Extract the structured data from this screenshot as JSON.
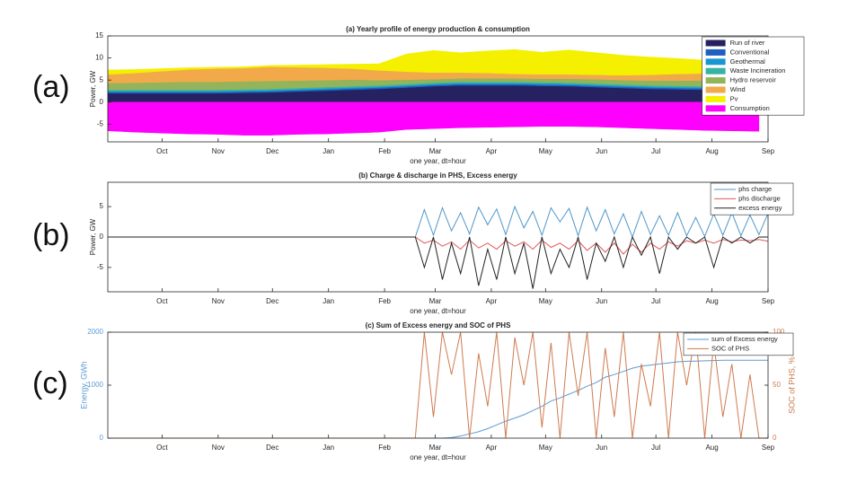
{
  "chart_data": [
    {
      "type": "area",
      "stacked": true,
      "panel_label": "(a)",
      "title": "(a) Yearly profile of energy production & consumption",
      "xlabel": "one year, dt=hour",
      "ylabel": "Power, GW",
      "xlim": [
        0,
        365
      ],
      "ylim": [
        -9,
        15
      ],
      "yticks": [
        -5,
        0,
        5,
        10,
        15
      ],
      "xticks": [
        {
          "value": 30,
          "label": "Oct"
        },
        {
          "value": 61,
          "label": "Nov"
        },
        {
          "value": 91,
          "label": "Dec"
        },
        {
          "value": 122,
          "label": "Jan"
        },
        {
          "value": 153,
          "label": "Feb"
        },
        {
          "value": 181,
          "label": "Mar"
        },
        {
          "value": 212,
          "label": "Apr"
        },
        {
          "value": 242,
          "label": "May"
        },
        {
          "value": 273,
          "label": "Jun"
        },
        {
          "value": 303,
          "label": "Jul"
        },
        {
          "value": 334,
          "label": "Aug"
        },
        {
          "value": 365,
          "label": "Sep"
        }
      ],
      "legend": "upper right",
      "grid": false,
      "x": [
        0,
        15,
        30,
        45,
        60,
        75,
        90,
        105,
        120,
        135,
        150,
        165,
        180,
        195,
        210,
        225,
        240,
        255,
        270,
        285,
        300,
        315,
        330,
        345,
        360
      ],
      "series": [
        {
          "name": "Run of river",
          "color": "#262262",
          "values": [
            2,
            2,
            2,
            2,
            2,
            2.1,
            2.2,
            2.4,
            2.6,
            2.8,
            3,
            3.3,
            3.6,
            3.8,
            3.8,
            3.8,
            3.7,
            3.6,
            3.4,
            3.2,
            3,
            2.9,
            2.8,
            2.7,
            2.6
          ]
        },
        {
          "name": "Conventional",
          "color": "#1f5fbf",
          "values": [
            0.3,
            0.3,
            0.3,
            0.3,
            0.3,
            0.3,
            0.3,
            0.3,
            0.3,
            0.3,
            0.3,
            0.3,
            0.3,
            0.3,
            0.3,
            0.3,
            0.3,
            0.3,
            0.3,
            0.3,
            0.3,
            0.3,
            0.3,
            0.3,
            0.3
          ]
        },
        {
          "name": "Geothermal",
          "color": "#1896d2",
          "values": [
            0.2,
            0.2,
            0.2,
            0.2,
            0.2,
            0.2,
            0.2,
            0.2,
            0.2,
            0.2,
            0.2,
            0.2,
            0.2,
            0.2,
            0.2,
            0.2,
            0.2,
            0.2,
            0.2,
            0.2,
            0.2,
            0.2,
            0.2,
            0.2,
            0.2
          ]
        },
        {
          "name": "Waste Incineration",
          "color": "#35b3a5",
          "values": [
            0.3,
            0.3,
            0.3,
            0.3,
            0.3,
            0.3,
            0.3,
            0.3,
            0.3,
            0.3,
            0.3,
            0.3,
            0.3,
            0.3,
            0.3,
            0.3,
            0.3,
            0.3,
            0.3,
            0.3,
            0.3,
            0.3,
            0.3,
            0.3,
            0.3
          ]
        },
        {
          "name": "Hydro reservoir",
          "color": "#93b45a",
          "values": [
            1.5,
            1.6,
            1.7,
            1.8,
            1.8,
            1.8,
            1.8,
            1.7,
            1.6,
            1.5,
            1.2,
            1,
            0.8,
            0.8,
            0.8,
            0.8,
            0.8,
            0.9,
            1,
            1,
            1.1,
            1.2,
            1.3,
            1.4,
            1.5
          ]
        },
        {
          "name": "Wind",
          "color": "#f2a94a",
          "values": [
            2,
            2.2,
            2.5,
            2.8,
            3,
            3,
            3.2,
            3,
            2.8,
            2.5,
            2.2,
            1.8,
            1.5,
            1.3,
            1.2,
            1,
            1,
            1,
            1,
            1.1,
            1.3,
            1.5,
            1.6,
            1.8,
            2
          ]
        },
        {
          "name": "Pv",
          "color": "#f4f000",
          "values": [
            1,
            0.8,
            0.6,
            0.4,
            0.3,
            0.3,
            0.3,
            0.5,
            0.7,
            1,
            1.5,
            4,
            5,
            4.5,
            5,
            5.5,
            5,
            5.5,
            5,
            4.5,
            4,
            3.5,
            3,
            2.5,
            2
          ]
        },
        {
          "name": "Consumption",
          "color": "#ff00ff",
          "values": [
            -6.5,
            -6.8,
            -7,
            -7.2,
            -7.3,
            -7.5,
            -7.5,
            -7.3,
            -7.2,
            -7,
            -6.8,
            -6.2,
            -6,
            -5.8,
            -5.7,
            -5.6,
            -5.5,
            -5.5,
            -5.6,
            -5.8,
            -6,
            -6.2,
            -6.4,
            -6.5,
            -6.6
          ]
        }
      ]
    },
    {
      "type": "line",
      "panel_label": "(b)",
      "title": "(b) Charge & discharge in PHS, Excess energy",
      "xlabel": "one year, dt=hour",
      "ylabel": "Power, GW",
      "xlim": [
        0,
        365
      ],
      "ylim": [
        -9,
        9
      ],
      "yticks": [
        -5,
        0,
        5
      ],
      "xticks": [
        {
          "value": 30,
          "label": "Oct"
        },
        {
          "value": 61,
          "label": "Nov"
        },
        {
          "value": 91,
          "label": "Dec"
        },
        {
          "value": 122,
          "label": "Jan"
        },
        {
          "value": 153,
          "label": "Feb"
        },
        {
          "value": 181,
          "label": "Mar"
        },
        {
          "value": 212,
          "label": "Apr"
        },
        {
          "value": 242,
          "label": "May"
        },
        {
          "value": 273,
          "label": "Jun"
        },
        {
          "value": 303,
          "label": "Jul"
        },
        {
          "value": 334,
          "label": "Aug"
        },
        {
          "value": 365,
          "label": "Sep"
        }
      ],
      "legend": "upper right",
      "grid": false,
      "x": [
        0,
        5,
        10,
        15,
        20,
        25,
        30,
        35,
        40,
        45,
        50,
        55,
        60,
        65,
        70,
        75,
        80,
        85,
        90,
        95,
        100,
        105,
        110,
        115,
        120,
        125,
        130,
        135,
        140,
        145,
        150,
        155,
        160,
        165,
        170,
        175,
        180,
        185,
        190,
        195,
        200,
        205,
        210,
        215,
        220,
        225,
        230,
        235,
        240,
        245,
        250,
        255,
        260,
        265,
        270,
        275,
        280,
        285,
        290,
        295,
        300,
        305,
        310,
        315,
        320,
        325,
        330,
        335,
        340,
        345,
        350,
        355,
        360,
        365
      ],
      "series": [
        {
          "name": "phs charge",
          "color": "#4f97c9",
          "values": [
            0,
            0,
            0,
            0,
            0,
            0,
            0,
            0,
            0,
            0,
            0,
            0,
            0,
            0,
            0,
            0,
            0,
            0,
            0,
            0,
            0,
            0,
            0,
            0,
            0,
            0,
            0,
            0,
            0,
            0,
            0,
            0,
            0,
            0,
            0,
            4.5,
            0.3,
            4.8,
            1,
            4,
            0.5,
            4.9,
            2,
            4.6,
            0.4,
            5,
            1.5,
            4.2,
            0.3,
            4.8,
            2.5,
            4.7,
            0.2,
            4.9,
            1,
            4.5,
            0.5,
            3.8,
            0,
            4.2,
            0.4,
            3.5,
            0.3,
            4,
            0.2,
            3.2,
            0.1,
            3.8,
            0.3,
            4,
            0.2,
            3.6,
            0.4,
            3.9
          ]
        },
        {
          "name": "phs discharge",
          "color": "#e05a5a",
          "values": [
            0,
            0,
            0,
            0,
            0,
            0,
            0,
            0,
            0,
            0,
            0,
            0,
            0,
            0,
            0,
            0,
            0,
            0,
            0,
            0,
            0,
            0,
            0,
            0,
            0,
            0,
            0,
            0,
            0,
            0,
            0,
            0,
            0,
            0,
            0,
            -1,
            -0.5,
            -1.5,
            -0.8,
            -2,
            -0.5,
            -1.8,
            -1,
            -2,
            -0.6,
            -1.5,
            -0.8,
            -2,
            -0.5,
            -1.7,
            -1,
            -2,
            -0.6,
            -2.2,
            -1,
            -2.5,
            -1,
            -2.8,
            -1.2,
            -2.5,
            -1,
            -2,
            -0.8,
            -1.5,
            -0.6,
            -1,
            -0.5,
            -1,
            -0.4,
            -0.8,
            -0.5,
            -0.6,
            -0.4,
            -0.7
          ]
        },
        {
          "name": "excess energy",
          "color": "#222222",
          "values": [
            0,
            0,
            0,
            0,
            0,
            0,
            0,
            0,
            0,
            0,
            0,
            0,
            0,
            0,
            0,
            0,
            0,
            0,
            0,
            0,
            0,
            0,
            0,
            0,
            0,
            0,
            0,
            0,
            0,
            0,
            0,
            0,
            0,
            0,
            0,
            -5,
            0,
            -7,
            -1,
            -6,
            0,
            -8,
            -2,
            -7,
            0,
            -6,
            -1,
            -8.5,
            0,
            -6,
            -2,
            -5,
            0,
            -7,
            -1,
            -4,
            0,
            -5,
            0,
            -3,
            0,
            -6,
            0,
            -2,
            0,
            -1,
            0,
            -5,
            0,
            -1,
            0,
            -1,
            0,
            0
          ]
        }
      ]
    },
    {
      "type": "line",
      "panel_label": "(c)",
      "title": "(c) Sum of Excess energy and SOC of PHS",
      "xlabel": "one year, dt=hour",
      "ylabel": "Energy, GWh",
      "y2label": "SOC of PHS, %",
      "xlim": [
        0,
        365
      ],
      "ylim": [
        0,
        2000
      ],
      "yticks": [
        0,
        1000,
        2000
      ],
      "y2lim": [
        0,
        100
      ],
      "y2ticks": [
        0,
        50,
        100
      ],
      "xticks": [
        {
          "value": 30,
          "label": "Oct"
        },
        {
          "value": 61,
          "label": "Nov"
        },
        {
          "value": 91,
          "label": "Dec"
        },
        {
          "value": 122,
          "label": "Jan"
        },
        {
          "value": 153,
          "label": "Feb"
        },
        {
          "value": 181,
          "label": "Mar"
        },
        {
          "value": 212,
          "label": "Apr"
        },
        {
          "value": 242,
          "label": "May"
        },
        {
          "value": 273,
          "label": "Jun"
        },
        {
          "value": 303,
          "label": "Jul"
        },
        {
          "value": 334,
          "label": "Aug"
        },
        {
          "value": 365,
          "label": "Sep"
        }
      ],
      "legend": "upper right",
      "grid": false,
      "x": [
        0,
        5,
        10,
        15,
        20,
        25,
        30,
        35,
        40,
        45,
        50,
        55,
        60,
        65,
        70,
        75,
        80,
        85,
        90,
        95,
        100,
        105,
        110,
        115,
        120,
        125,
        130,
        135,
        140,
        145,
        150,
        155,
        160,
        165,
        170,
        175,
        180,
        185,
        190,
        195,
        200,
        205,
        210,
        215,
        220,
        225,
        230,
        235,
        240,
        245,
        250,
        255,
        260,
        265,
        270,
        275,
        280,
        285,
        290,
        295,
        300,
        305,
        310,
        315,
        320,
        325,
        330,
        335,
        340,
        345,
        350,
        355,
        360,
        365
      ],
      "series": [
        {
          "name": "sum of Excess energy",
          "color": "#5b9bd5",
          "values": [
            0,
            0,
            0,
            0,
            0,
            0,
            0,
            0,
            0,
            0,
            0,
            0,
            0,
            0,
            0,
            0,
            0,
            0,
            0,
            0,
            0,
            0,
            0,
            0,
            0,
            0,
            0,
            0,
            0,
            0,
            0,
            0,
            0,
            0,
            0,
            0,
            0,
            0,
            10,
            40,
            80,
            120,
            180,
            250,
            320,
            380,
            440,
            520,
            600,
            700,
            760,
            830,
            900,
            980,
            1050,
            1150,
            1200,
            1260,
            1320,
            1360,
            1380,
            1400,
            1420,
            1440,
            1450,
            1455,
            1460,
            1465,
            1470,
            1470,
            1470,
            1470,
            1470,
            1470
          ]
        },
        {
          "name": "SOC of PHS",
          "color": "#cf7a4f",
          "axis": "y2",
          "values": [
            0,
            0,
            0,
            0,
            0,
            0,
            0,
            0,
            0,
            0,
            0,
            0,
            0,
            0,
            0,
            0,
            0,
            0,
            0,
            0,
            0,
            0,
            0,
            0,
            0,
            0,
            0,
            0,
            0,
            0,
            0,
            0,
            0,
            0,
            0,
            100,
            20,
            100,
            60,
            100,
            0,
            80,
            30,
            100,
            0,
            95,
            50,
            100,
            10,
            90,
            0,
            100,
            40,
            100,
            0,
            85,
            20,
            100,
            0,
            70,
            30,
            100,
            0,
            100,
            50,
            100,
            0,
            90,
            20,
            70,
            0,
            60,
            0,
            0
          ]
        }
      ]
    }
  ]
}
